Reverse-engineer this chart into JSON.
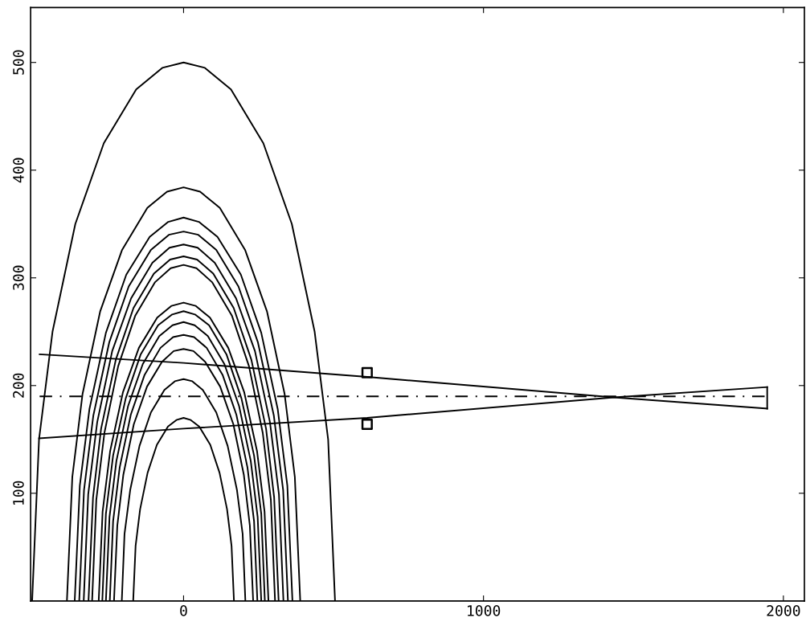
{
  "chart_data": {
    "type": "line",
    "xlim": [
      -510,
      2070
    ],
    "ylim": [
      0,
      551
    ],
    "xticks": [
      0,
      1000,
      2000
    ],
    "yticks": [
      100,
      200,
      300,
      400,
      500
    ],
    "grid": false,
    "marker": "none",
    "line_style": "solid",
    "series": [
      {
        "color": "#000000",
        "x": [
          -505,
          -482,
          -437,
          -361,
          -266,
          -158,
          -71,
          0,
          71,
          158,
          266,
          361,
          437,
          482,
          505
        ],
        "values": [
          0,
          150,
          250,
          350,
          425,
          475,
          495,
          500,
          495,
          475,
          425,
          350,
          250,
          150,
          0
        ]
      },
      {
        "color": "#000000",
        "x": [
          -389,
          -371,
          -337,
          -278,
          -205,
          -121,
          -55,
          0,
          55,
          121,
          205,
          278,
          337,
          371,
          389
        ],
        "values": [
          0,
          115,
          192,
          269,
          326,
          365,
          380,
          384,
          380,
          365,
          326,
          269,
          192,
          115,
          0
        ]
      },
      {
        "color": "#000000",
        "x": [
          -363,
          -346,
          -314,
          -259,
          -191,
          -113,
          -51,
          0,
          51,
          113,
          191,
          259,
          314,
          346,
          363
        ],
        "values": [
          0,
          107,
          178,
          249,
          303,
          338,
          352,
          356,
          352,
          338,
          303,
          249,
          178,
          107,
          0
        ]
      },
      {
        "color": "#000000",
        "x": [
          -348,
          -332,
          -301,
          -248,
          -183,
          -109,
          -49,
          0,
          49,
          109,
          183,
          248,
          301,
          332,
          348
        ],
        "values": [
          0,
          103,
          172,
          240,
          292,
          326,
          340,
          343,
          340,
          326,
          292,
          240,
          172,
          103,
          0
        ]
      },
      {
        "color": "#000000",
        "x": [
          -333,
          -318,
          -288,
          -238,
          -175,
          -104,
          -47,
          0,
          47,
          104,
          175,
          238,
          288,
          318,
          333
        ],
        "values": [
          0,
          99,
          166,
          232,
          281,
          314,
          328,
          331,
          328,
          314,
          281,
          232,
          166,
          99,
          0
        ]
      },
      {
        "color": "#000000",
        "x": [
          -317,
          -302,
          -275,
          -226,
          -167,
          -99,
          -45,
          0,
          45,
          99,
          167,
          226,
          275,
          302,
          317
        ],
        "values": [
          0,
          96,
          160,
          224,
          272,
          304,
          317,
          320,
          317,
          304,
          272,
          224,
          160,
          96,
          0
        ]
      },
      {
        "color": "#000000",
        "x": [
          -305,
          -291,
          -264,
          -218,
          -161,
          -95,
          -43,
          0,
          43,
          95,
          161,
          218,
          264,
          291,
          305
        ],
        "values": [
          0,
          94,
          156,
          218,
          265,
          296,
          309,
          312,
          309,
          296,
          265,
          218,
          156,
          94,
          0
        ]
      },
      {
        "color": "#000000",
        "x": [
          -283,
          -270,
          -245,
          -202,
          -149,
          -88,
          -40,
          0,
          40,
          88,
          149,
          202,
          245,
          270,
          283
        ],
        "values": [
          0,
          83,
          139,
          194,
          235,
          263,
          274,
          277,
          274,
          263,
          235,
          194,
          139,
          83,
          0
        ]
      },
      {
        "color": "#000000",
        "x": [
          -271,
          -259,
          -235,
          -193,
          -143,
          -85,
          -38,
          0,
          38,
          85,
          143,
          193,
          235,
          259,
          271
        ],
        "values": [
          0,
          81,
          135,
          188,
          229,
          256,
          266,
          269,
          266,
          256,
          229,
          188,
          135,
          81,
          0
        ]
      },
      {
        "color": "#000000",
        "x": [
          -259,
          -247,
          -224,
          -185,
          -136,
          -81,
          -37,
          0,
          37,
          81,
          136,
          185,
          224,
          247,
          259
        ],
        "values": [
          0,
          78,
          130,
          181,
          220,
          246,
          256,
          259,
          256,
          246,
          220,
          181,
          130,
          78,
          0
        ]
      },
      {
        "color": "#000000",
        "x": [
          -246,
          -235,
          -213,
          -176,
          -130,
          -77,
          -35,
          0,
          35,
          77,
          130,
          176,
          213,
          235,
          246
        ],
        "values": [
          0,
          74,
          124,
          173,
          210,
          235,
          245,
          247,
          245,
          235,
          210,
          173,
          124,
          74,
          0
        ]
      },
      {
        "color": "#000000",
        "x": [
          -232,
          -221,
          -201,
          -166,
          -122,
          -72,
          -33,
          0,
          33,
          72,
          122,
          166,
          201,
          221,
          232
        ],
        "values": [
          0,
          70,
          117,
          164,
          199,
          222,
          232,
          234,
          232,
          222,
          199,
          164,
          117,
          70,
          0
        ]
      },
      {
        "color": "#000000",
        "x": [
          -206,
          -197,
          -178,
          -147,
          -109,
          -64,
          -29,
          0,
          29,
          64,
          109,
          147,
          178,
          197,
          206
        ],
        "values": [
          0,
          62,
          103,
          144,
          175,
          196,
          204,
          206,
          204,
          196,
          175,
          144,
          103,
          62,
          0
        ]
      },
      {
        "color": "#000000",
        "x": [
          -168,
          -160,
          -145,
          -120,
          -89,
          -52,
          -24,
          0,
          24,
          52,
          89,
          120,
          145,
          160,
          168
        ],
        "values": [
          0,
          51,
          85,
          119,
          145,
          162,
          168,
          170,
          168,
          162,
          145,
          119,
          85,
          51,
          0
        ]
      },
      {
        "color": "#000000",
        "x": [
          -480,
          0,
          612,
          1435,
          1946
        ],
        "values": [
          229,
          221,
          208,
          189,
          178.6
        ]
      },
      {
        "color": "#000000",
        "x": [
          -482,
          0,
          612,
          1435,
          1946
        ],
        "values": [
          151,
          160,
          170,
          189,
          198.6
        ]
      },
      {
        "color": "#000000",
        "x": [
          1946,
          1946
        ],
        "values": [
          178.6,
          198.6
        ]
      },
      {
        "color": "#000000",
        "x": [
          -480,
          1946
        ],
        "values": [
          190,
          190
        ],
        "line_style": "dashed"
      },
      {
        "color": "#000000",
        "type": "scatter",
        "marker": "square",
        "x": [
          612,
          612
        ],
        "values": [
          212,
          164
        ]
      }
    ]
  }
}
